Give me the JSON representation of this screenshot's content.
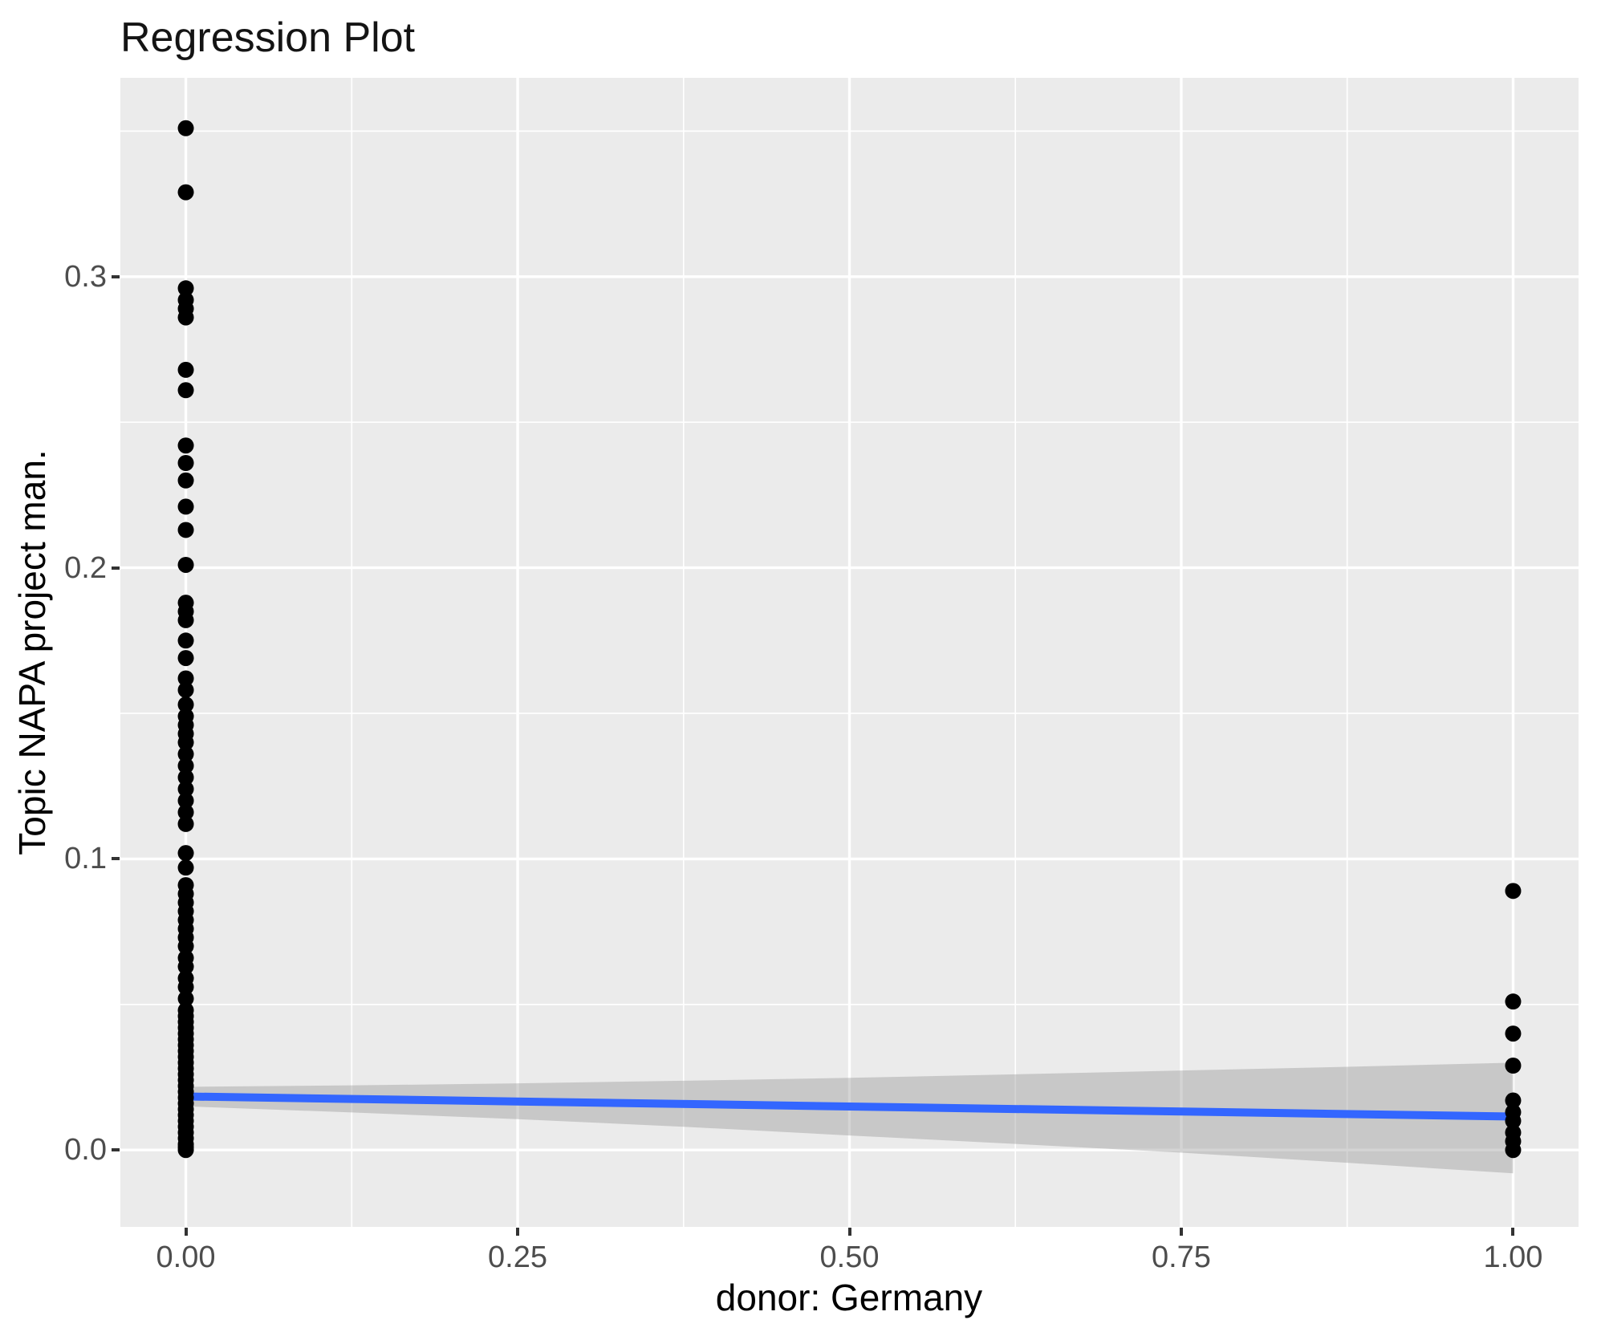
{
  "chart_data": {
    "type": "scatter",
    "title": "Regression Plot",
    "xlabel": "donor: Germany",
    "ylabel": "Topic NAPA project man.",
    "grid": true,
    "legend": "none",
    "panel_background": "#EBEBEB",
    "gridline_color": "#FFFFFF",
    "point_color": "#000000",
    "tick_label_color": "#4D4D4D",
    "x_range": [
      -0.0493,
      1.0493
    ],
    "y_range": [
      -0.0264,
      0.3683
    ],
    "x_ticks": {
      "values": [
        0,
        0.25,
        0.5,
        0.75,
        1.0
      ],
      "labels": [
        "0.00",
        "0.25",
        "0.50",
        "0.75",
        "1.00"
      ]
    },
    "y_ticks": {
      "values": [
        0,
        0.1,
        0.2,
        0.3
      ],
      "labels": [
        "0.0",
        "0.1",
        "0.2",
        "0.3"
      ]
    },
    "x_minor_gridlines": [
      0.125,
      0.375,
      0.625,
      0.875
    ],
    "y_minor_gridlines": [
      0.05,
      0.15,
      0.25,
      0.35
    ],
    "series": [
      {
        "name": "donor Germany = 0",
        "x": 0,
        "y": [
          0.351,
          0.329,
          0.296,
          0.292,
          0.289,
          0.286,
          0.268,
          0.261,
          0.242,
          0.236,
          0.23,
          0.221,
          0.213,
          0.201,
          0.188,
          0.185,
          0.182,
          0.175,
          0.169,
          0.162,
          0.158,
          0.153,
          0.149,
          0.146,
          0.143,
          0.14,
          0.136,
          0.132,
          0.128,
          0.124,
          0.12,
          0.116,
          0.112,
          0.102,
          0.097,
          0.091,
          0.088,
          0.085,
          0.082,
          0.079,
          0.076,
          0.073,
          0.07,
          0.066,
          0.063,
          0.059,
          0.056,
          0.052,
          0.048,
          0.046,
          0.044,
          0.042,
          0.04,
          0.038,
          0.036,
          0.034,
          0.032,
          0.03,
          0.028,
          0.026,
          0.024,
          0.022,
          0.02,
          0.018,
          0.016,
          0.014,
          0.012,
          0.01,
          0.008,
          0.006,
          0.004,
          0.002,
          0.001,
          0.0
        ]
      },
      {
        "name": "donor Germany = 1",
        "x": 1,
        "y": [
          0.089,
          0.051,
          0.04,
          0.029,
          0.017,
          0.013,
          0.01,
          0.006,
          0.003,
          0.0
        ]
      }
    ],
    "regression_line": {
      "x": [
        0,
        1
      ],
      "y": [
        0.0184,
        0.0115
      ],
      "color": "#3366FF",
      "width": 10
    },
    "confidence_band": {
      "x": [
        0,
        0.125,
        0.25,
        0.375,
        0.5,
        0.625,
        0.75,
        0.875,
        1.0
      ],
      "upper": [
        0.0217,
        0.0222,
        0.0229,
        0.0238,
        0.0248,
        0.026,
        0.0273,
        0.0286,
        0.03
      ],
      "lower": [
        0.015,
        0.0129,
        0.0106,
        0.008,
        0.005,
        0.0021,
        -0.0009,
        -0.0044,
        -0.008
      ],
      "color": "#999999",
      "opacity": 0.42
    }
  }
}
